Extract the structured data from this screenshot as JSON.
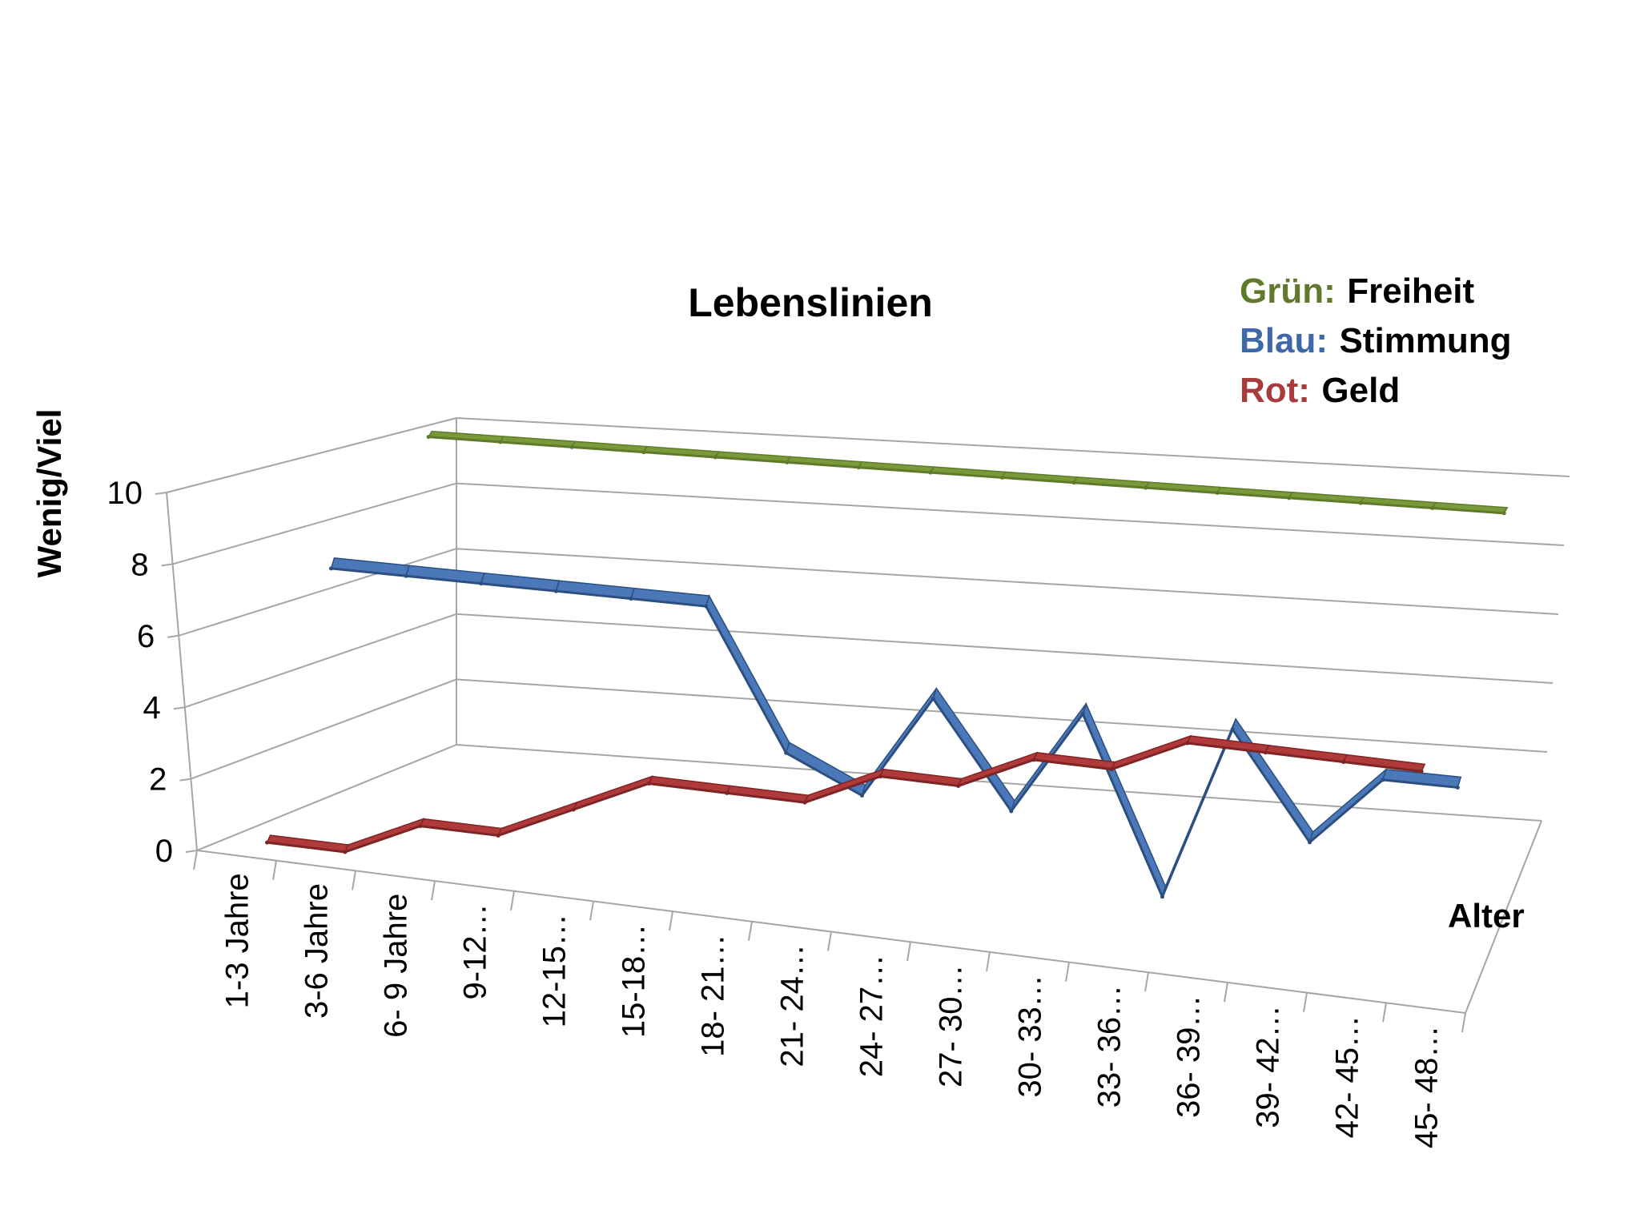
{
  "chart_data": {
    "type": "line",
    "title": "Lebenslinien",
    "xlabel": "Alter",
    "ylabel": "Wenig/Viel",
    "ylim": [
      0,
      10
    ],
    "yticks": [
      "0",
      "2",
      "4",
      "6",
      "8",
      "10"
    ],
    "grid": true,
    "view": "3d",
    "categories": [
      "1-3 Jahre",
      "3-6 Jahre",
      "6- 9 Jahre",
      "9-12…",
      "12-15…",
      "15-18…",
      "18- 21…",
      "21- 24…",
      "24- 27…",
      "27- 30…",
      "30- 33…",
      "33- 36…",
      "36- 39…",
      "39- 42…",
      "42- 45…",
      "45- 48…"
    ],
    "series": [
      {
        "key": "green",
        "color": "#7a9a3a",
        "edge": "#5f7a2a",
        "values": [
          10,
          10,
          10,
          10,
          10,
          10,
          10,
          10,
          10,
          10,
          10,
          10,
          10,
          10,
          10,
          10
        ]
      },
      {
        "key": "blue",
        "color": "#4a78b8",
        "edge": "#2c4f80",
        "values": [
          7,
          7,
          7,
          7,
          7,
          7,
          3,
          2,
          5,
          2,
          5,
          0,
          5,
          2,
          4,
          4
        ]
      },
      {
        "key": "red",
        "color": "#b03a3a",
        "edge": "#7f2424",
        "values": [
          0,
          0,
          1,
          1,
          2,
          3,
          3,
          3,
          4,
          4,
          5,
          5,
          6,
          6,
          6,
          6
        ]
      }
    ],
    "legend": {
      "position": "top-right",
      "entries": [
        {
          "key": "Grün:",
          "value": "Freiheit",
          "color": "#5f7a2a"
        },
        {
          "key": "Blau:",
          "value": "Stimmung",
          "color": "#3f68a8"
        },
        {
          "key": "Rot:",
          "value": "Geld",
          "color": "#a83c3c"
        }
      ]
    }
  }
}
